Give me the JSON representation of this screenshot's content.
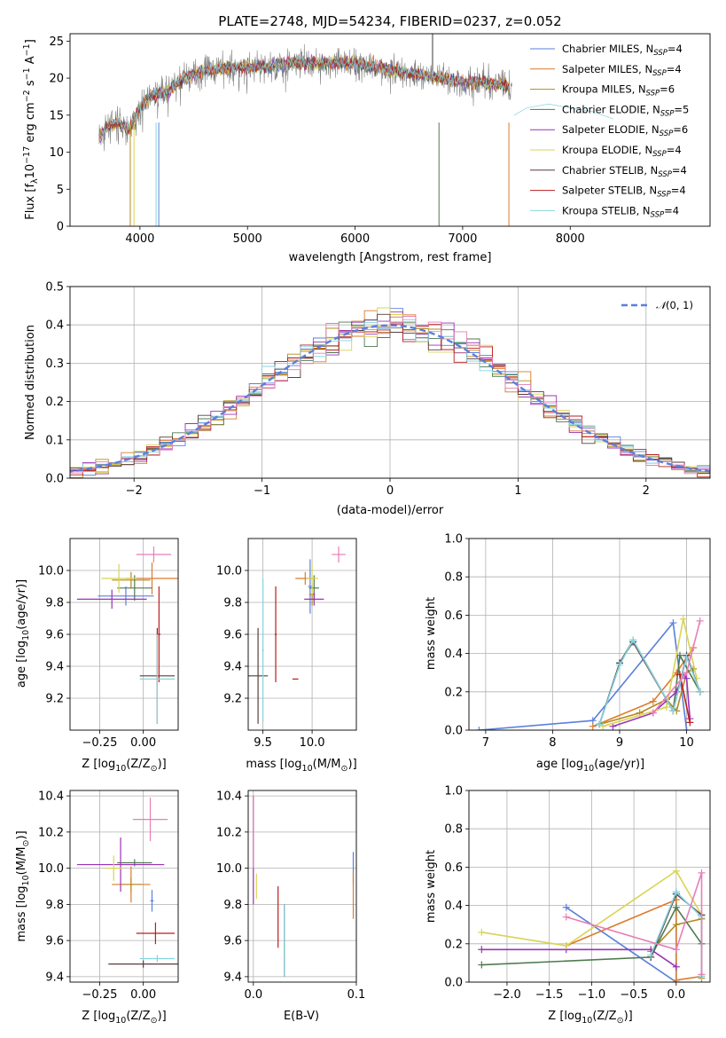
{
  "title": "PLATE=2748, MJD=54234, FIBERID=0237, z=0.052",
  "colors": [
    "#5b7fdc",
    "#dc7a2c",
    "#b5891e",
    "#4f7a4f",
    "#9b32b8",
    "#d8d455",
    "#5a3d3d",
    "#b81e1e",
    "#86d4e0"
  ],
  "chart_data": [
    {
      "id": "spectrum",
      "type": "line",
      "xlabel": "wavelength [Angstrom, rest frame]",
      "ylabel": "Flux [f_λ10^-17 erg cm^-2 s^-1 A^-1]",
      "ylabel_parts": [
        "Flux [f",
        "λ",
        "10",
        "−17",
        " erg cm",
        "−2",
        " s",
        "−1",
        " A",
        "−1",
        "]"
      ],
      "xlim": [
        3350,
        9300
      ],
      "ylim": [
        0,
        26
      ],
      "xticks": [
        4000,
        5000,
        6000,
        7000,
        8000
      ],
      "yticks": [
        0,
        5,
        10,
        15,
        20,
        25
      ],
      "grid": false,
      "legend_position": "top-right",
      "legend": [
        {
          "pre": "Chabrier MILES, N",
          "sub": "SSP",
          "post": "=4"
        },
        {
          "pre": "Salpeter MILES, N",
          "sub": "SSP",
          "post": "=4"
        },
        {
          "pre": "Kroupa MILES, N",
          "sub": "SSP",
          "post": "=6"
        },
        {
          "pre": "Chabrier ELODIE, N",
          "sub": "SSP",
          "post": "=5"
        },
        {
          "pre": "Salpeter ELODIE, N",
          "sub": "SSP",
          "post": "=6"
        },
        {
          "pre": "Kroupa ELODIE, N",
          "sub": "SSP",
          "post": "=4"
        },
        {
          "pre": "Chabrier STELIB, N",
          "sub": "SSP",
          "post": "=4"
        },
        {
          "pre": "Salpeter STELIB, N",
          "sub": "SSP",
          "post": "=4"
        },
        {
          "pre": "Kroupa STELIB, N",
          "sub": "SSP",
          "post": "=4"
        }
      ],
      "data_series": {
        "name": "data",
        "color": "#808080"
      },
      "continuum": {
        "x": [
          3620,
          3700,
          3800,
          3900,
          4000,
          4100,
          4200,
          4300,
          4400,
          4600,
          4800,
          5000,
          5200,
          5400,
          5600,
          5800,
          6000,
          6200,
          6400,
          6600,
          6800,
          7000,
          7200,
          7400,
          7500
        ],
        "y": [
          12,
          13.5,
          14,
          13,
          16,
          17.5,
          18,
          18.5,
          20,
          21,
          21.5,
          21.5,
          21.5,
          22,
          22,
          22,
          22,
          21.5,
          21,
          20.5,
          20,
          19.5,
          19.5,
          19,
          18.5
        ]
      },
      "model_end": {
        "x": [
          7480,
          7600,
          7800,
          8000,
          8200,
          8400
        ],
        "y": [
          15,
          16,
          16.5,
          16,
          15.5,
          14.5
        ]
      }
    },
    {
      "id": "residuals",
      "type": "histogram",
      "xlabel": "(data-model)/error",
      "ylabel": "Normed distribution",
      "xlim": [
        -2.5,
        2.5
      ],
      "ylim": [
        0,
        0.5
      ],
      "xticks": [
        -2,
        -1,
        0,
        1,
        2
      ],
      "yticks": [
        0,
        0.1,
        0.2,
        0.3,
        0.4,
        0.5
      ],
      "grid": true,
      "legend": "N(0,1)",
      "legend_parts": {
        "script": "𝒩",
        "rest": "(0, 1)"
      },
      "legend_position": "top-right",
      "bin_width": 0.1
    },
    {
      "id": "age-vs-Z",
      "type": "errorbar",
      "xlabel": "Z [log10(Z/Z⊙)]",
      "ylabel": "age [log10(age/yr)]",
      "xlim": [
        -0.42,
        0.2
      ],
      "ylim": [
        9.0,
        10.2
      ],
      "xticks": [
        -0.25,
        0.0
      ],
      "yticks": [
        9.2,
        9.4,
        9.6,
        9.8,
        10.0
      ],
      "grid": true,
      "points": [
        {
          "x": -0.1,
          "y": 9.84,
          "xerr": 0.16,
          "yerr": 0.06,
          "c": 0
        },
        {
          "x": 0.05,
          "y": 9.95,
          "xerr": 0.15,
          "yerr": 0.1,
          "c": 1
        },
        {
          "x": -0.07,
          "y": 9.94,
          "xerr": 0.11,
          "yerr": 0.05,
          "c": 2
        },
        {
          "x": -0.05,
          "y": 9.89,
          "xerr": 0.1,
          "yerr": 0.08,
          "c": 3
        },
        {
          "x": -0.18,
          "y": 9.82,
          "xerr": 0.2,
          "yerr": 0.06,
          "c": 4
        },
        {
          "x": -0.14,
          "y": 9.95,
          "xerr": 0.1,
          "yerr": 0.09,
          "c": 5
        },
        {
          "x": 0.08,
          "y": 9.34,
          "xerr": 0.1,
          "yerr": 0.3,
          "c": 6
        },
        {
          "x": 0.09,
          "y": 9.6,
          "xerr": 0.01,
          "yerr": 0.3,
          "c": 7
        },
        {
          "x": 0.08,
          "y": 9.32,
          "xerr": 0.1,
          "yerr": 0.28,
          "c": 8
        },
        {
          "x": 0.06,
          "y": 10.1,
          "xerr": 0.1,
          "yerr": 0.05,
          "c": 9
        }
      ]
    },
    {
      "id": "age-vs-mass",
      "type": "errorbar",
      "xlabel": "mass [log10(M/M⊙)]",
      "ylabel": "",
      "xlim": [
        9.35,
        10.45
      ],
      "ylim": [
        9.0,
        10.2
      ],
      "xticks": [
        9.5,
        10.0
      ],
      "yticks": [
        9.2,
        9.4,
        9.6,
        9.8,
        10.0
      ],
      "grid": true,
      "points": [
        {
          "x": 9.98,
          "y": 9.9,
          "xerr": 0.02,
          "yerr": 0.17,
          "c": 0
        },
        {
          "x": 9.93,
          "y": 9.95,
          "xerr": 0.1,
          "yerr": 0.04,
          "c": 1
        },
        {
          "x": 10.0,
          "y": 9.85,
          "xerr": 0.03,
          "yerr": 0.07,
          "c": 2
        },
        {
          "x": 10.02,
          "y": 9.89,
          "xerr": 0.05,
          "yerr": 0.08,
          "c": 3
        },
        {
          "x": 10.02,
          "y": 9.82,
          "xerr": 0.1,
          "yerr": 0.04,
          "c": 4
        },
        {
          "x": 10.0,
          "y": 9.95,
          "xerr": 0.06,
          "yerr": 0.1,
          "c": 5
        },
        {
          "x": 9.45,
          "y": 9.34,
          "xerr": 0.1,
          "yerr": 0.3,
          "c": 6
        },
        {
          "x": 9.63,
          "y": 9.6,
          "xerr": 0.01,
          "yerr": 0.3,
          "c": 7
        },
        {
          "x": 9.5,
          "y": 9.5,
          "xerr": 0.01,
          "yerr": 0.45,
          "c": 8
        },
        {
          "x": 10.27,
          "y": 10.1,
          "xerr": 0.07,
          "yerr": 0.05,
          "c": 9
        },
        {
          "x": 9.83,
          "y": 9.32,
          "xerr": 0.03,
          "yerr": 0.0,
          "c": 7
        }
      ]
    },
    {
      "id": "weight-vs-age",
      "type": "line",
      "xlabel": "age [log10(age/yr)]",
      "ylabel": "mass weight",
      "xlim": [
        6.75,
        10.35
      ],
      "ylim": [
        0,
        1
      ],
      "xticks": [
        7,
        8,
        9,
        10
      ],
      "yticks": [
        0.0,
        0.2,
        0.4,
        0.6,
        0.8,
        1.0
      ],
      "grid": true,
      "series": [
        {
          "c": 0,
          "x": [
            6.9,
            8.6,
            9.8,
            10.0
          ],
          "y": [
            0.0,
            0.05,
            0.56,
            0.0
          ]
        },
        {
          "c": 1,
          "x": [
            8.6,
            9.5,
            9.85,
            10.1
          ],
          "y": [
            0.02,
            0.15,
            0.3,
            0.43
          ]
        },
        {
          "c": 2,
          "x": [
            8.7,
            9.3,
            9.7,
            9.85,
            10.0,
            10.1
          ],
          "y": [
            0.03,
            0.09,
            0.16,
            0.1,
            0.3,
            0.32
          ]
        },
        {
          "c": 3,
          "x": [
            8.7,
            9.0,
            9.2,
            9.8,
            9.9,
            10.2
          ],
          "y": [
            0.03,
            0.35,
            0.47,
            0.1,
            0.39,
            0.2
          ]
        },
        {
          "c": 4,
          "x": [
            8.9,
            9.5,
            9.85,
            9.95,
            10.0,
            10.05
          ],
          "y": [
            0.02,
            0.09,
            0.2,
            0.29,
            0.27,
            0.06
          ]
        },
        {
          "c": 5,
          "x": [
            8.75,
            9.7,
            9.95,
            10.15
          ],
          "y": [
            0.02,
            0.12,
            0.58,
            0.27
          ]
        },
        {
          "c": 6,
          "x": [
            8.7,
            9.0,
            9.2,
            9.8,
            10.0,
            10.2
          ],
          "y": [
            0.03,
            0.35,
            0.46,
            0.1,
            0.39,
            0.2
          ]
        },
        {
          "c": 7,
          "x": [
            9.9,
            10.05
          ],
          "y": [
            0.29,
            0.04
          ]
        },
        {
          "c": 8,
          "x": [
            8.7,
            9.0,
            9.2,
            9.8,
            10.0,
            10.2
          ],
          "y": [
            0.03,
            0.34,
            0.47,
            0.1,
            0.38,
            0.2
          ]
        },
        {
          "c": 9,
          "x": [
            9.5,
            10.0,
            10.2
          ],
          "y": [
            0.09,
            0.3,
            0.57
          ]
        }
      ]
    },
    {
      "id": "mass-vs-Z",
      "type": "errorbar",
      "xlabel": "Z [log10(Z/Z⊙)]",
      "ylabel": "mass [log10(M/M⊙)]",
      "xlim": [
        -0.42,
        0.2
      ],
      "ylim": [
        9.37,
        10.43
      ],
      "xticks": [
        -0.25,
        0.0
      ],
      "yticks": [
        9.4,
        9.6,
        9.8,
        10.0,
        10.2,
        10.4
      ],
      "grid": true,
      "points": [
        {
          "x": 0.05,
          "y": 9.82,
          "xerr": 0.01,
          "yerr": 0.06,
          "c": 0
        },
        {
          "x": -0.07,
          "y": 9.91,
          "xerr": 0.11,
          "yerr": 0.1,
          "c": 1
        },
        {
          "x": -0.07,
          "y": 9.91,
          "xerr": 0.06,
          "yerr": 0.04,
          "c": 2
        },
        {
          "x": -0.05,
          "y": 10.03,
          "xerr": 0.1,
          "yerr": 0.02,
          "c": 3
        },
        {
          "x": -0.13,
          "y": 10.02,
          "xerr": 0.25,
          "yerr": 0.15,
          "c": 4
        },
        {
          "x": -0.17,
          "y": 10.0,
          "xerr": 0.05,
          "yerr": 0.07,
          "c": 5
        },
        {
          "x": 0.0,
          "y": 9.47,
          "xerr": 0.2,
          "yerr": 0.02,
          "c": 6
        },
        {
          "x": 0.07,
          "y": 9.64,
          "xerr": 0.11,
          "yerr": 0.06,
          "c": 7
        },
        {
          "x": 0.08,
          "y": 9.5,
          "xerr": 0.1,
          "yerr": 0.02,
          "c": 8
        },
        {
          "x": 0.04,
          "y": 10.27,
          "xerr": 0.1,
          "yerr": 0.12,
          "c": 9
        }
      ]
    },
    {
      "id": "mass-vs-ebv",
      "type": "errorbar",
      "xlabel": "E(B-V)",
      "ylabel": "",
      "xlim": [
        -0.005,
        0.1
      ],
      "ylim": [
        9.37,
        10.43
      ],
      "xticks": [
        0.0,
        0.1
      ],
      "yticks": [
        9.4,
        9.6,
        9.8,
        10.0,
        10.2,
        10.4
      ],
      "grid": true,
      "points": [
        {
          "x": 0.097,
          "y": 10.0,
          "xerr": 0.0,
          "yerr": 0.09,
          "c": 0
        },
        {
          "x": 0.097,
          "y": 9.85,
          "xerr": 0.0,
          "yerr": 0.13,
          "c": 1
        },
        {
          "x": 0.0,
          "y": 10.1,
          "xerr": 0.0,
          "yerr": 0.3,
          "c": 4
        },
        {
          "x": 0.003,
          "y": 9.9,
          "xerr": 0.0,
          "yerr": 0.07,
          "c": 5
        },
        {
          "x": 0.024,
          "y": 9.73,
          "xerr": 0.0,
          "yerr": 0.17,
          "c": 7
        },
        {
          "x": 0.03,
          "y": 9.6,
          "xerr": 0.0,
          "yerr": 0.2,
          "c": 6
        },
        {
          "x": 0.03,
          "y": 9.6,
          "xerr": 0.0,
          "yerr": 0.2,
          "c": 8
        },
        {
          "x": 0.0,
          "y": 10.2,
          "xerr": 0.0,
          "yerr": 0.2,
          "c": 9
        }
      ]
    },
    {
      "id": "weight-vs-Z",
      "type": "line",
      "xlabel": "Z [log10(Z/Z⊙)]",
      "ylabel": "mass weight",
      "xlim": [
        -2.45,
        0.4
      ],
      "ylim": [
        0,
        1
      ],
      "xticks": [
        -2.0,
        -1.5,
        -1.0,
        -0.5,
        0.0
      ],
      "yticks": [
        0.0,
        0.2,
        0.4,
        0.6,
        0.8,
        1.0
      ],
      "grid": true,
      "series": [
        {
          "c": 0,
          "x": [
            -1.3,
            0.0,
            0.0
          ],
          "y": [
            0.39,
            0.0,
            0.47
          ]
        },
        {
          "c": 1,
          "x": [
            -1.3,
            0.0,
            0.0,
            0.3
          ],
          "y": [
            0.19,
            0.43,
            0.01,
            0.03
          ]
        },
        {
          "c": 2,
          "x": [
            -0.3,
            0.0,
            0.3,
            0.3
          ],
          "y": [
            0.16,
            0.3,
            0.33,
            0.02
          ]
        },
        {
          "c": 3,
          "x": [
            -2.3,
            -0.3,
            0.0,
            0.3
          ],
          "y": [
            0.09,
            0.13,
            0.39,
            0.2
          ]
        },
        {
          "c": 4,
          "x": [
            -2.3,
            -1.3,
            -0.3,
            0.0
          ],
          "y": [
            0.17,
            0.17,
            0.17,
            0.08
          ]
        },
        {
          "c": 5,
          "x": [
            -2.3,
            -1.3,
            0.0,
            0.3
          ],
          "y": [
            0.26,
            0.19,
            0.58,
            0.35
          ]
        },
        {
          "c": 6,
          "x": [
            -0.3,
            0.0,
            0.3
          ],
          "y": [
            0.13,
            0.46,
            0.35
          ]
        },
        {
          "c": 8,
          "x": [
            -0.3,
            0.0,
            0.3,
            0.3
          ],
          "y": [
            0.14,
            0.47,
            0.34,
            0.03
          ]
        },
        {
          "c": 9,
          "x": [
            -1.3,
            0.0,
            0.3,
            0.3
          ],
          "y": [
            0.34,
            0.17,
            0.57,
            0.04
          ]
        }
      ]
    }
  ]
}
